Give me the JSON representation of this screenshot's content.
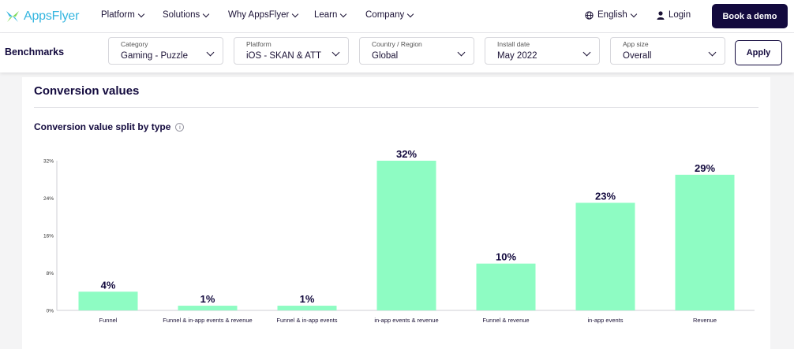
{
  "nav": {
    "logo_text": "AppsFlyer",
    "items": [
      {
        "label": "Platform"
      },
      {
        "label": "Solutions"
      },
      {
        "label": "Why AppsFlyer"
      },
      {
        "label": "Learn"
      },
      {
        "label": "Company"
      }
    ],
    "language": "English",
    "login": "Login",
    "demo_button": "Book a demo"
  },
  "filters": {
    "title": "Benchmarks",
    "selects": [
      {
        "label": "Category",
        "value": "Gaming - Puzzle"
      },
      {
        "label": "Platform",
        "value": "iOS - SKAN & ATT"
      },
      {
        "label": "Country / Region",
        "value": "Global"
      },
      {
        "label": "Install date",
        "value": "May 2022"
      },
      {
        "label": "App size",
        "value": "Overall"
      }
    ],
    "apply_button": "Apply"
  },
  "section": {
    "title": "Conversion values",
    "subtitle": "Conversion value split by type",
    "info_icon": "i"
  },
  "colors": {
    "bar": "#8efcc3",
    "brand_dark": "#130a3e",
    "logo": "#36b6e0"
  },
  "chart_data": {
    "type": "bar",
    "categories": [
      "Funnel",
      "Funnel & in-app events & revenue",
      "Funnel & in-app events",
      "in-app events & revenue",
      "Funnel & revenue",
      "in-app events",
      "Revenue"
    ],
    "values": [
      4,
      1,
      1,
      32,
      10,
      23,
      29
    ],
    "data_labels": [
      "4%",
      "1%",
      "1%",
      "32%",
      "10%",
      "23%",
      "29%"
    ],
    "yticks": [
      0,
      8,
      16,
      24,
      32
    ],
    "ytick_labels": [
      "0%",
      "8%",
      "16%",
      "24%",
      "32%"
    ],
    "ylim": [
      0,
      32
    ],
    "title": "",
    "xlabel": "",
    "ylabel": "",
    "grid": false
  }
}
